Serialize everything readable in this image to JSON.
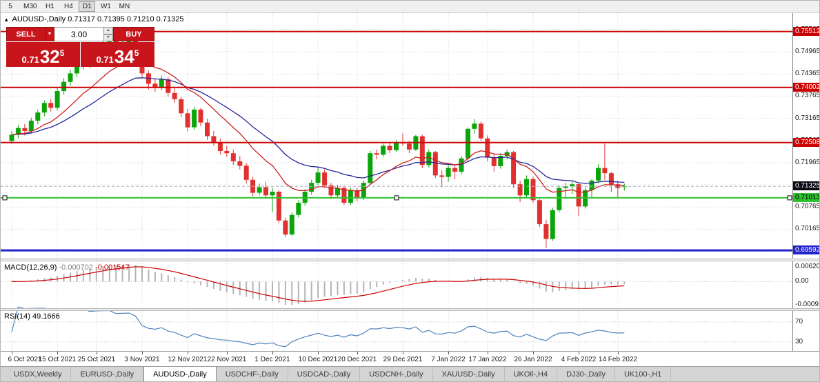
{
  "toolbar": {
    "buttons": [
      "5",
      "M30",
      "H1",
      "H4",
      "D1",
      "W1",
      "MN"
    ],
    "active": "D1"
  },
  "chart": {
    "symbol_label": "AUDUSD-,Daily",
    "ohlc_values": "0.71317 0.71395 0.71210 0.71325"
  },
  "trade_panel": {
    "collapse_icon": "▴",
    "sell_label": "SELL",
    "buy_label": "BUY",
    "volume": "3.00",
    "bid": {
      "prefix": "0.71",
      "big": "32",
      "sup": "5"
    },
    "ask": {
      "prefix": "0.71",
      "big": "34",
      "sup": "5"
    }
  },
  "colors": {
    "trade_red": "#c8151b",
    "bull": "#0aa50a",
    "bear": "#e03030",
    "hline_red": "#cc0000",
    "hline_green": "#2ec22e",
    "hline_blue": "#2222cc",
    "current_price_bg": "#0a0a14",
    "ma_fast": "#cc2222",
    "ma_slow": "#24249a",
    "macd_hist": "#b4b4b4",
    "macd_signal": "#cc0000",
    "rsi_line": "#4f81bd",
    "grid": "#d9d9d9"
  },
  "price_axis": {
    "grid_labels": [
      {
        "text": "0.75565",
        "price": 0.75565
      },
      {
        "text": "0.74965",
        "price": 0.74965
      },
      {
        "text": "0.74365",
        "price": 0.74365
      },
      {
        "text": "0.73765",
        "price": 0.73765
      },
      {
        "text": "0.73165",
        "price": 0.73165
      },
      {
        "text": "0.72565",
        "price": 0.72565
      },
      {
        "text": "0.71965",
        "price": 0.71965
      },
      {
        "text": "0.71365",
        "price": 0.71365
      },
      {
        "text": "0.70765",
        "price": 0.70765
      },
      {
        "text": "0.70165",
        "price": 0.70165
      },
      {
        "text": "0.69565",
        "price": 0.69565
      }
    ],
    "badges": [
      {
        "text": "0.75512",
        "price": 0.75512,
        "bg": "#cc0000",
        "fg": "#ffffff"
      },
      {
        "text": "0.74002",
        "price": 0.74002,
        "bg": "#cc0000",
        "fg": "#ffffff"
      },
      {
        "text": "0.72508",
        "price": 0.72508,
        "bg": "#cc0000",
        "fg": "#ffffff"
      },
      {
        "text": "0.71325",
        "price": 0.71325,
        "bg": "#0a0a14",
        "fg": "#ffffff"
      },
      {
        "text": "0.71013",
        "price": 0.71013,
        "bg": "#2ec22e",
        "fg": "#000000"
      },
      {
        "text": "0.69592",
        "price": 0.69592,
        "bg": "#2222cc",
        "fg": "#ffffff"
      }
    ]
  },
  "chart_data": {
    "type": "candlestick",
    "symbol": "AUDUSD",
    "timeframe": "Daily",
    "ohlc_current": {
      "open": 0.71317,
      "high": 0.71395,
      "low": 0.7121,
      "close": 0.71325
    },
    "ylim": [
      0.6937,
      0.7601
    ],
    "y_grid_step": 0.006,
    "candle_colors": {
      "bull": "#0aa50a",
      "bear": "#e03030"
    },
    "x_labels": [
      {
        "i": 0,
        "t": "6 Oct 2021"
      },
      {
        "i": 7,
        "t": "15 Oct 2021"
      },
      {
        "i": 13,
        "t": "25 Oct 2021"
      },
      {
        "i": 20,
        "t": "3 Nov 2021"
      },
      {
        "i": 27,
        "t": "12 Nov 2021"
      },
      {
        "i": 33,
        "t": "22 Nov 2021"
      },
      {
        "i": 40,
        "t": "1 Dec 2021"
      },
      {
        "i": 47,
        "t": "10 Dec 2021"
      },
      {
        "i": 53,
        "t": "20 Dec 2021"
      },
      {
        "i": 60,
        "t": "29 Dec 2021"
      },
      {
        "i": 67,
        "t": "7 Jan 2022"
      },
      {
        "i": 73,
        "t": "17 Jan 2022"
      },
      {
        "i": 80,
        "t": "26 Jan 2022"
      },
      {
        "i": 87,
        "t": "4 Feb 2022"
      },
      {
        "i": 93,
        "t": "14 Feb 2022"
      }
    ],
    "candles": [
      [
        0.7255,
        0.7282,
        0.7248,
        0.7272
      ],
      [
        0.7272,
        0.7298,
        0.7262,
        0.729
      ],
      [
        0.729,
        0.7301,
        0.727,
        0.7282
      ],
      [
        0.7282,
        0.7318,
        0.7275,
        0.731
      ],
      [
        0.731,
        0.734,
        0.73,
        0.7332
      ],
      [
        0.7332,
        0.7365,
        0.7322,
        0.7358
      ],
      [
        0.7358,
        0.7368,
        0.7335,
        0.7345
      ],
      [
        0.7345,
        0.7398,
        0.7338,
        0.739
      ],
      [
        0.739,
        0.7425,
        0.738,
        0.7415
      ],
      [
        0.7415,
        0.7448,
        0.7405,
        0.7438
      ],
      [
        0.7438,
        0.747,
        0.7428,
        0.746
      ],
      [
        0.746,
        0.7488,
        0.7448,
        0.7478
      ],
      [
        0.7478,
        0.749,
        0.7452,
        0.7465
      ],
      [
        0.7465,
        0.751,
        0.7458,
        0.75
      ],
      [
        0.75,
        0.7525,
        0.749,
        0.7515
      ],
      [
        0.7515,
        0.7535,
        0.7505,
        0.7528
      ],
      [
        0.7528,
        0.7532,
        0.7495,
        0.751
      ],
      [
        0.751,
        0.7528,
        0.75,
        0.7519
      ],
      [
        0.7519,
        0.7536,
        0.751,
        0.753
      ],
      [
        0.753,
        0.7533,
        0.75,
        0.7512
      ],
      [
        0.7512,
        0.7518,
        0.7428,
        0.7438
      ],
      [
        0.7438,
        0.7445,
        0.7395,
        0.741
      ],
      [
        0.741,
        0.7425,
        0.7388,
        0.74
      ],
      [
        0.74,
        0.7432,
        0.7392,
        0.7422
      ],
      [
        0.7422,
        0.7428,
        0.7375,
        0.7385
      ],
      [
        0.7385,
        0.7398,
        0.7358,
        0.7368
      ],
      [
        0.7368,
        0.7375,
        0.732,
        0.733
      ],
      [
        0.733,
        0.7342,
        0.7282,
        0.7292
      ],
      [
        0.7292,
        0.7348,
        0.7285,
        0.734
      ],
      [
        0.734,
        0.7345,
        0.7295,
        0.7305
      ],
      [
        0.7305,
        0.7315,
        0.7258,
        0.7268
      ],
      [
        0.7268,
        0.7282,
        0.7242,
        0.7252
      ],
      [
        0.7252,
        0.7262,
        0.7218,
        0.7228
      ],
      [
        0.7228,
        0.7242,
        0.7212,
        0.7222
      ],
      [
        0.7222,
        0.7232,
        0.719,
        0.72
      ],
      [
        0.72,
        0.7215,
        0.7178,
        0.7188
      ],
      [
        0.7188,
        0.7195,
        0.714,
        0.715
      ],
      [
        0.715,
        0.7158,
        0.7105,
        0.7115
      ],
      [
        0.7115,
        0.714,
        0.7108,
        0.713
      ],
      [
        0.713,
        0.7145,
        0.7098,
        0.7108
      ],
      [
        0.7108,
        0.7128,
        0.7062,
        0.7118
      ],
      [
        0.7118,
        0.7122,
        0.7032,
        0.704
      ],
      [
        0.704,
        0.7048,
        0.6995,
        0.7002
      ],
      [
        0.7002,
        0.7062,
        0.6998,
        0.7055
      ],
      [
        0.7055,
        0.7095,
        0.7048,
        0.7088
      ],
      [
        0.7088,
        0.7125,
        0.708,
        0.7118
      ],
      [
        0.7118,
        0.715,
        0.711,
        0.7142
      ],
      [
        0.7142,
        0.7185,
        0.7135,
        0.717
      ],
      [
        0.717,
        0.7178,
        0.7128,
        0.7135
      ],
      [
        0.7135,
        0.7142,
        0.7098,
        0.7108
      ],
      [
        0.7108,
        0.7136,
        0.71,
        0.7128
      ],
      [
        0.7128,
        0.7132,
        0.7082,
        0.7088
      ],
      [
        0.7088,
        0.7128,
        0.7082,
        0.7122
      ],
      [
        0.7122,
        0.7128,
        0.7092,
        0.7102
      ],
      [
        0.7102,
        0.7148,
        0.7095,
        0.7142
      ],
      [
        0.7142,
        0.7228,
        0.7138,
        0.7222
      ],
      [
        0.7222,
        0.7232,
        0.7205,
        0.7218
      ],
      [
        0.7218,
        0.7248,
        0.7212,
        0.7242
      ],
      [
        0.7242,
        0.725,
        0.7222,
        0.723
      ],
      [
        0.723,
        0.7258,
        0.7225,
        0.7252
      ],
      [
        0.7252,
        0.7275,
        0.7242,
        0.7248
      ],
      [
        0.7248,
        0.7255,
        0.7222,
        0.7232
      ],
      [
        0.7232,
        0.7272,
        0.7228,
        0.7268
      ],
      [
        0.7268,
        0.7272,
        0.7182,
        0.719
      ],
      [
        0.719,
        0.7232,
        0.7183,
        0.7225
      ],
      [
        0.7225,
        0.7228,
        0.7155,
        0.7162
      ],
      [
        0.7162,
        0.7175,
        0.713,
        0.7158
      ],
      [
        0.7158,
        0.7192,
        0.7145,
        0.7182
      ],
      [
        0.7182,
        0.719,
        0.7152,
        0.7172
      ],
      [
        0.7172,
        0.7215,
        0.7165,
        0.7208
      ],
      [
        0.7208,
        0.7292,
        0.72,
        0.7288
      ],
      [
        0.7288,
        0.7314,
        0.7275,
        0.7302
      ],
      [
        0.7302,
        0.7308,
        0.7255,
        0.7262
      ],
      [
        0.7262,
        0.727,
        0.72,
        0.721
      ],
      [
        0.721,
        0.7222,
        0.7172,
        0.7187
      ],
      [
        0.7187,
        0.7222,
        0.718,
        0.7215
      ],
      [
        0.7215,
        0.7232,
        0.7205,
        0.7225
      ],
      [
        0.7225,
        0.7228,
        0.7128,
        0.7138
      ],
      [
        0.7138,
        0.7148,
        0.709,
        0.7108
      ],
      [
        0.7108,
        0.7162,
        0.71,
        0.7152
      ],
      [
        0.7152,
        0.7158,
        0.7088,
        0.7095
      ],
      [
        0.7095,
        0.7098,
        0.7022,
        0.703
      ],
      [
        0.703,
        0.7042,
        0.6966,
        0.699
      ],
      [
        0.699,
        0.7075,
        0.6985,
        0.7068
      ],
      [
        0.7068,
        0.7135,
        0.7062,
        0.7128
      ],
      [
        0.7128,
        0.7142,
        0.7098,
        0.7132
      ],
      [
        0.7132,
        0.7148,
        0.7112,
        0.7138
      ],
      [
        0.7138,
        0.7142,
        0.7052,
        0.7078
      ],
      [
        0.7078,
        0.713,
        0.7072,
        0.7122
      ],
      [
        0.7122,
        0.7152,
        0.71,
        0.7148
      ],
      [
        0.7148,
        0.7192,
        0.714,
        0.7182
      ],
      [
        0.7182,
        0.7248,
        0.715,
        0.7168
      ],
      [
        0.7168,
        0.7172,
        0.7118,
        0.7138
      ],
      [
        0.7138,
        0.7148,
        0.71,
        0.7128
      ],
      [
        0.71317,
        0.71395,
        0.7121,
        0.71325
      ]
    ],
    "overlays": [
      {
        "name": "ma-fast",
        "type": "ema",
        "period": 12,
        "color": "#cc2222"
      },
      {
        "name": "ma-slow",
        "type": "ema",
        "period": 24,
        "color": "#24249a"
      }
    ],
    "levels": [
      {
        "price": 0.75512,
        "color": "#cc0000",
        "width": 2,
        "style": "solid"
      },
      {
        "price": 0.74002,
        "color": "#cc0000",
        "width": 2,
        "style": "solid"
      },
      {
        "price": 0.72508,
        "color": "#cc0000",
        "width": 2,
        "style": "solid"
      },
      {
        "price": 0.71325,
        "color": "#b0b0bc",
        "width": 1,
        "style": "dash",
        "is_bid_line": true
      },
      {
        "price": 0.71013,
        "color": "#2ec22e",
        "width": 2,
        "style": "solid",
        "selected": true
      },
      {
        "price": 0.69592,
        "color": "#2222cc",
        "width": 3,
        "style": "solid"
      }
    ],
    "indicators": {
      "macd": {
        "name_label": "MACD(12,26,9)",
        "value_main": "-0.000702",
        "value_signal": "-0.001547",
        "fast": 12,
        "slow": 26,
        "signal": 9,
        "axis_labels": [
          "0.006201",
          "0.00",
          "-0.000919"
        ],
        "hist_color": "#b4b4b4",
        "signal_color": "#cc0000"
      },
      "rsi": {
        "name_label": "RSI(14)",
        "value_label": "49.1666",
        "period": 14,
        "levels": [
          70,
          30
        ],
        "line_color": "#4f81bd"
      }
    }
  },
  "tabs": [
    {
      "label": "USDX,Weekly",
      "active": false
    },
    {
      "label": "EURUSD-,Daily",
      "active": false
    },
    {
      "label": "AUDUSD-,Daily",
      "active": true
    },
    {
      "label": "USDCHF-,Daily",
      "active": false
    },
    {
      "label": "USDCAD-,Daily",
      "active": false
    },
    {
      "label": "USDCNH-,Daily",
      "active": false
    },
    {
      "label": "XAUUSD-,Daily",
      "active": false
    },
    {
      "label": "UKOil-,H4",
      "active": false
    },
    {
      "label": "DJ30-,Daily",
      "active": false
    },
    {
      "label": "UK100-,H1",
      "active": false
    }
  ]
}
